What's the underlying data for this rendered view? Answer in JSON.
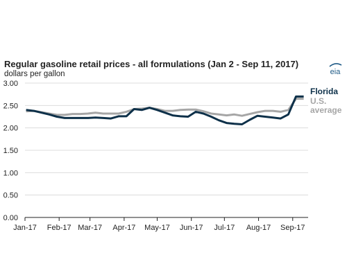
{
  "colors": {
    "florida": "#0d3049",
    "us": "#a6a6a6",
    "grid": "#dcdcdc",
    "axis": "#222222",
    "logo": "#1e5a86"
  },
  "logo": {
    "text": "eia",
    "icon": "eia-logo-icon"
  },
  "chart_data": {
    "type": "line",
    "title": "Regular gasoline retail prices - all formulations (Jan 2 - Sep 11, 2017)",
    "subtitle": "dollars per gallon",
    "xlabel": "",
    "ylabel": "dollars per gallon",
    "ylim": [
      0,
      3
    ],
    "yticks": [
      "0.00",
      "0.50",
      "1.00",
      "1.50",
      "2.00",
      "2.50",
      "3.00"
    ],
    "xticks": [
      "Jan-17",
      "Feb-17",
      "Mar-17",
      "Apr-17",
      "May-17",
      "Jun-17",
      "Jul-17",
      "Aug-17",
      "Sep-17"
    ],
    "x": [
      "2017-01-02",
      "2017-01-09",
      "2017-01-16",
      "2017-01-23",
      "2017-01-30",
      "2017-02-06",
      "2017-02-13",
      "2017-02-20",
      "2017-02-27",
      "2017-03-06",
      "2017-03-13",
      "2017-03-20",
      "2017-03-27",
      "2017-04-03",
      "2017-04-10",
      "2017-04-17",
      "2017-04-24",
      "2017-05-01",
      "2017-05-08",
      "2017-05-15",
      "2017-05-22",
      "2017-05-29",
      "2017-06-05",
      "2017-06-12",
      "2017-06-19",
      "2017-06-26",
      "2017-07-03",
      "2017-07-10",
      "2017-07-17",
      "2017-07-24",
      "2017-07-31",
      "2017-08-07",
      "2017-08-14",
      "2017-08-21",
      "2017-08-28",
      "2017-09-04",
      "2017-09-11"
    ],
    "grid": true,
    "series": [
      {
        "name": "U.S. average",
        "label_lines": [
          "U.S.",
          "average"
        ],
        "values": [
          2.37,
          2.38,
          2.35,
          2.32,
          2.29,
          2.29,
          2.31,
          2.31,
          2.32,
          2.34,
          2.32,
          2.32,
          2.32,
          2.36,
          2.42,
          2.43,
          2.45,
          2.42,
          2.38,
          2.38,
          2.4,
          2.41,
          2.41,
          2.37,
          2.32,
          2.3,
          2.28,
          2.3,
          2.27,
          2.31,
          2.35,
          2.38,
          2.38,
          2.36,
          2.4,
          2.65,
          2.65
        ]
      },
      {
        "name": "Florida",
        "label_lines": [
          "Florida"
        ],
        "values": [
          2.4,
          2.38,
          2.34,
          2.3,
          2.25,
          2.22,
          2.22,
          2.22,
          2.22,
          2.23,
          2.22,
          2.21,
          2.26,
          2.26,
          2.42,
          2.4,
          2.45,
          2.4,
          2.34,
          2.28,
          2.26,
          2.25,
          2.36,
          2.32,
          2.25,
          2.17,
          2.11,
          2.09,
          2.08,
          2.18,
          2.27,
          2.25,
          2.23,
          2.21,
          2.3,
          2.7,
          2.7
        ]
      }
    ]
  }
}
